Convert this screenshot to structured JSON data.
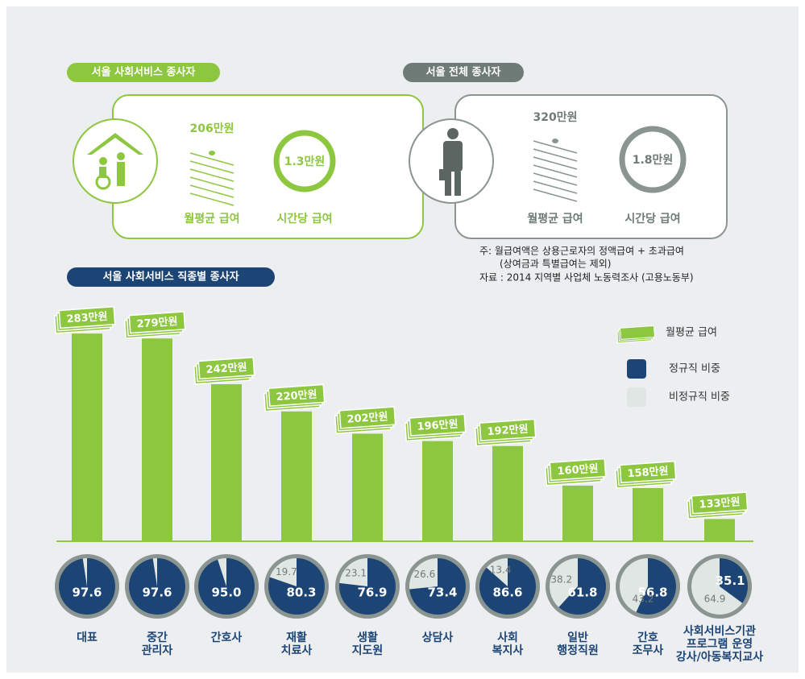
{
  "panels": [
    {
      "title": "서울 사회서비스 종사자",
      "monthly_amount": "206만원",
      "monthly_label": "월평균 급여",
      "hourly_amount": "1.3만원",
      "hourly_label": "시간당 급여"
    },
    {
      "title": "서울 전체 종사자",
      "monthly_amount": "320만원",
      "monthly_label": "월평균 급여",
      "hourly_amount": "1.8만원",
      "hourly_label": "시간당 급여"
    }
  ],
  "notes": [
    "주: 월급여액은 상용근로자의 정액급여 + 초과급여",
    "(상여금과 특별급여는 제외)",
    "자료 : 2014 지역별 사업체 노동력조사 (고용노동부)"
  ],
  "chart_data": {
    "type": "bar",
    "title": "서울 사회서비스 직종별 종사자",
    "categories": [
      "대표",
      "중간\n관리자",
      "간호사",
      "재활\n치료사",
      "생활\n지도원",
      "상담사",
      "사회\n복지사",
      "일반\n행정직원",
      "간호\n조무사",
      "사회서비스기관\n프로그램 운영\n강사/아동복지교사"
    ],
    "ylim": [
      115,
      300
    ],
    "series": [
      {
        "name": "월평균 급여",
        "color": "#8dc63f",
        "values": [
          283,
          279,
          242,
          220,
          202,
          196,
          192,
          160,
          158,
          133
        ],
        "value_labels": [
          "283만원",
          "279만원",
          "242만원",
          "220만원",
          "202만원",
          "196만원",
          "192만원",
          "160만원",
          "158만원",
          "133만원"
        ]
      },
      {
        "name": "정규직 비중",
        "color": "#1c4475",
        "values": [
          97.6,
          97.6,
          95.0,
          80.3,
          76.9,
          73.4,
          86.6,
          61.8,
          56.8,
          35.1
        ],
        "value_labels": [
          "97.6",
          "97.6",
          "95.0",
          "80.3",
          "76.9",
          "73.4",
          "86.6",
          "61.8",
          "56.8",
          "35.1"
        ]
      },
      {
        "name": "비정규직 비중",
        "color": "#dfe6e3",
        "values": [
          2.4,
          2.4,
          5.0,
          19.7,
          23.1,
          26.6,
          13.4,
          38.2,
          43.2,
          64.9
        ],
        "value_labels": [
          null,
          null,
          null,
          "19.7",
          "23.1",
          "26.6",
          "13.4",
          "38.2",
          "43.2",
          "64.9"
        ]
      }
    ]
  }
}
